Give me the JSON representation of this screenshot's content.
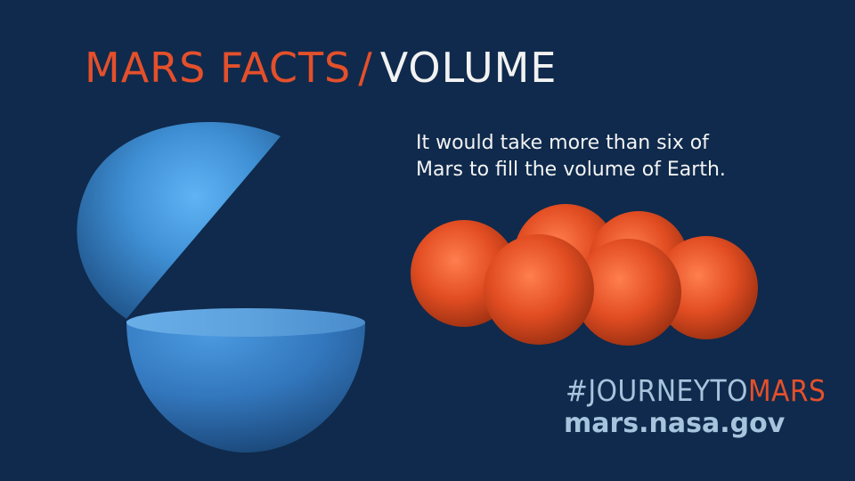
{
  "title": {
    "part1": "MARS FACTS",
    "separator": "/",
    "part2": "VOLUME"
  },
  "caption": {
    "line1": "It would take more than six of",
    "line2": "Mars to fill the volume of Earth."
  },
  "hashtag": {
    "part1": "#JOURNEYTO",
    "part2": "MARS"
  },
  "url": "mars.nasa.gov",
  "colors": {
    "background": "#0f2a4c",
    "accent_orange": "#e4502b",
    "earth_blue": "#4aa0e6",
    "light_blue_text": "#a6c4dd",
    "white_text": "#f2f2f2"
  },
  "illustration": {
    "earth": "earth-sphere-cut-open",
    "mars_spheres_count": 6
  }
}
